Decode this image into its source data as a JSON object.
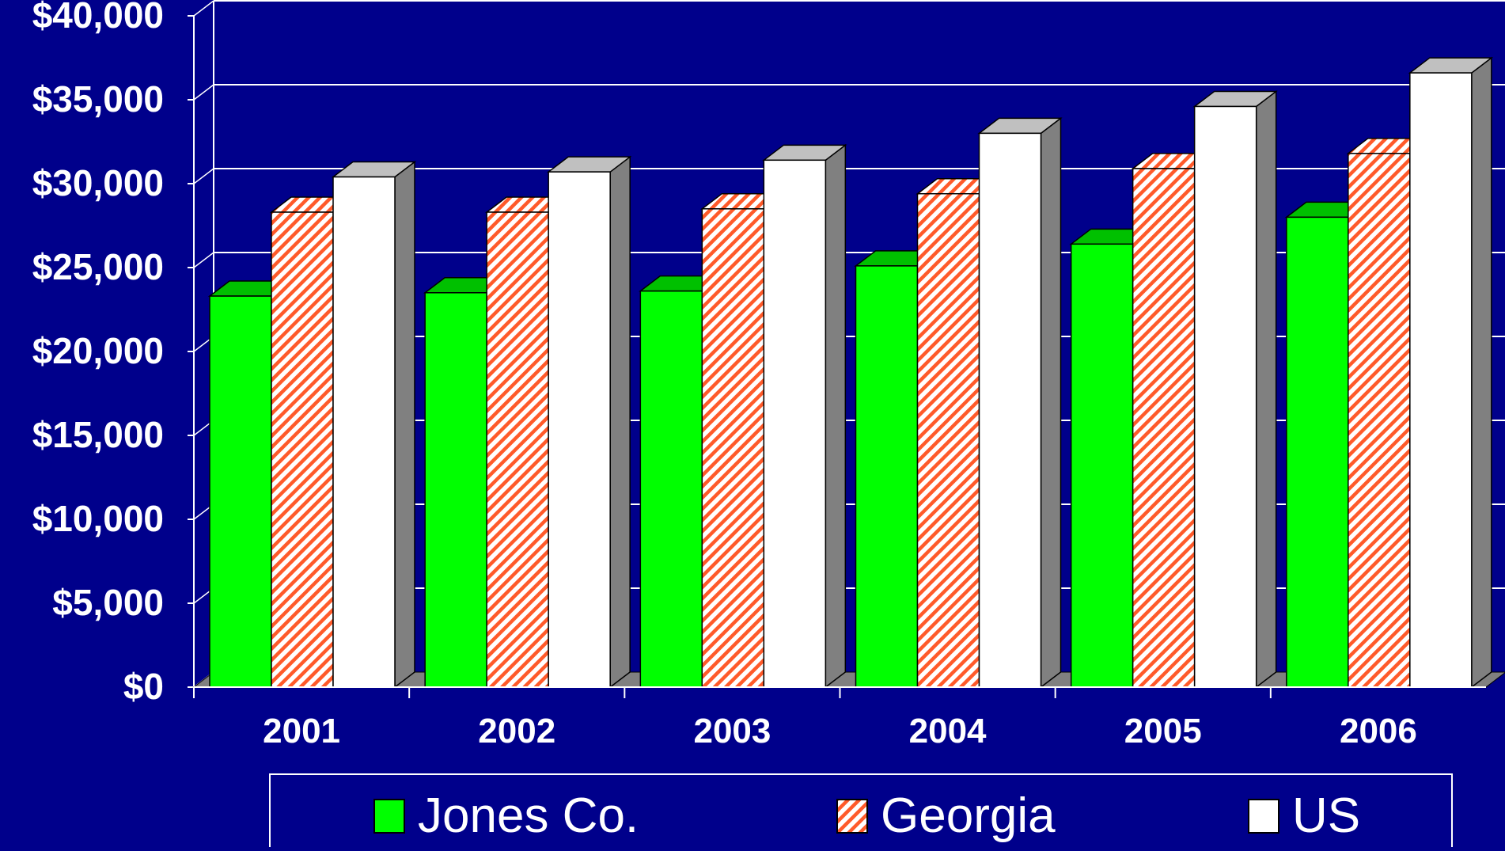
{
  "chart_data": {
    "type": "bar",
    "categories": [
      "2001",
      "2002",
      "2003",
      "2004",
      "2005",
      "2006"
    ],
    "series": [
      {
        "name": "Jones Co.",
        "values": [
          23300,
          23500,
          23600,
          25100,
          26400,
          28000
        ],
        "color": "#00ff00",
        "pattern": "solid"
      },
      {
        "name": "Georgia",
        "values": [
          28300,
          28300,
          28500,
          29400,
          30900,
          31800
        ],
        "color": "#ff5a2a",
        "pattern": "diagonal-hatch"
      },
      {
        "name": "US",
        "values": [
          30400,
          30700,
          31400,
          33000,
          34600,
          36600
        ],
        "color": "#ffffff",
        "pattern": "solid"
      }
    ],
    "ylim": [
      0,
      40000
    ],
    "y_ticks": [
      0,
      5000,
      10000,
      15000,
      20000,
      25000,
      30000,
      35000,
      40000
    ],
    "y_tick_labels": [
      "$0",
      "$5,000",
      "$10,000",
      "$15,000",
      "$20,000",
      "$25,000",
      "$30,000",
      "$35,000",
      "$40,000"
    ],
    "xlabel": "",
    "ylabel": "",
    "title": "",
    "grid": true,
    "style": "3d-column",
    "legend_position": "bottom",
    "colors": {
      "background": "#00008b",
      "gridline": "#ffffff",
      "text": "#ffffff",
      "side_gray": "#808080"
    }
  }
}
